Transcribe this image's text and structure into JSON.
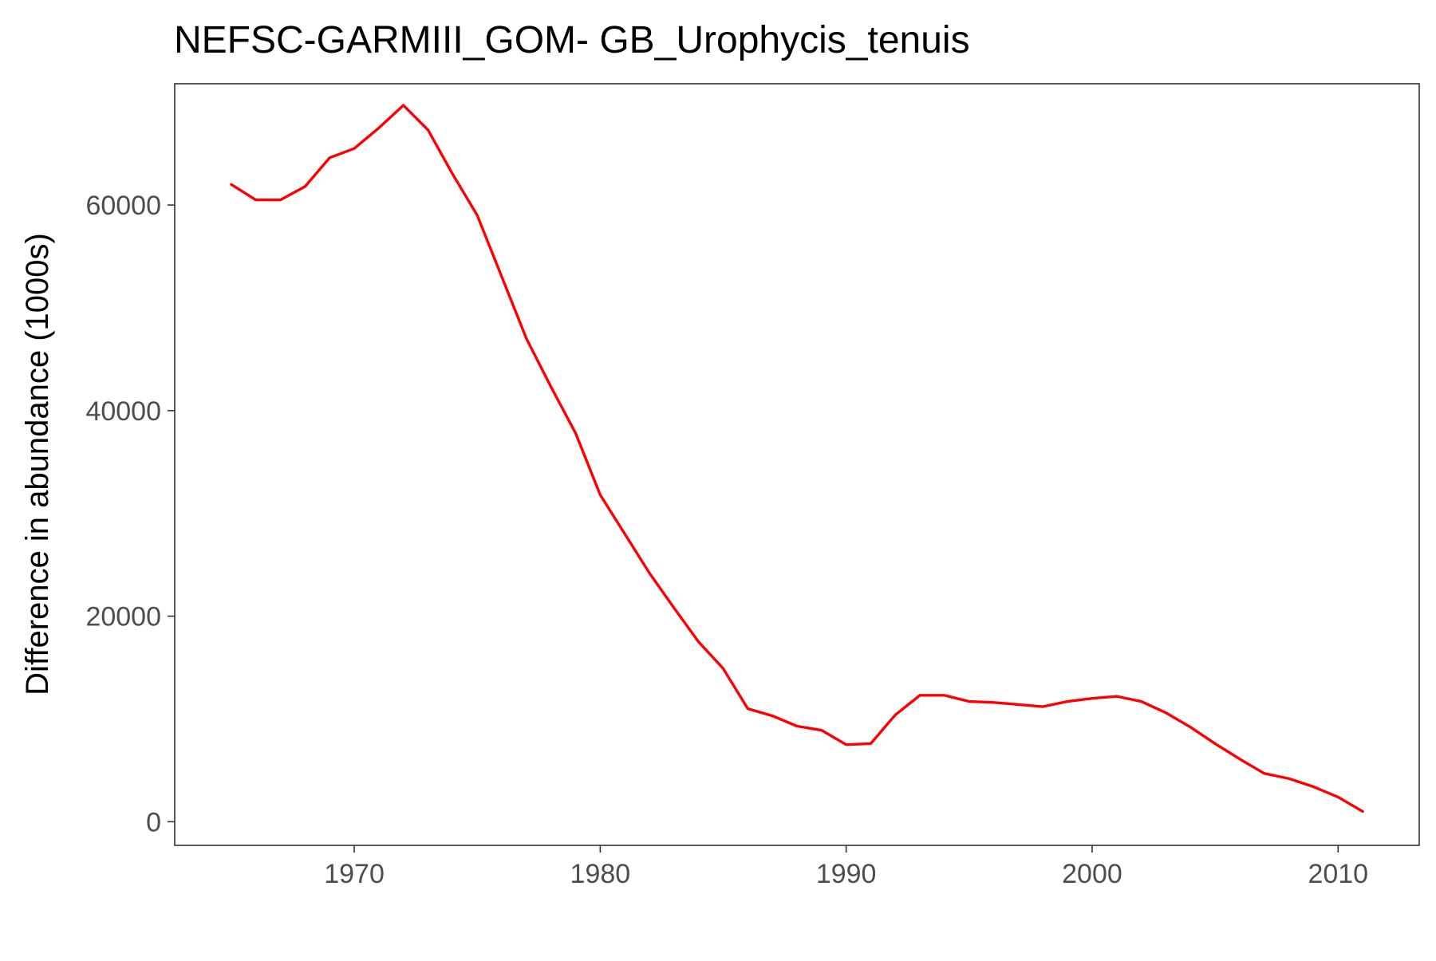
{
  "chart_data": {
    "type": "line",
    "title": "NEFSC-GARMIII_GOM- GB_Urophycis_tenuis",
    "xlabel": "",
    "ylabel": "Difference in abundance (1000s)",
    "xlim": [
      1962.7,
      2013.3
    ],
    "ylim": [
      -2300,
      71800
    ],
    "xticks": [
      1970,
      1980,
      1990,
      2000,
      2010
    ],
    "yticks": [
      0,
      20000,
      40000,
      60000
    ],
    "grid": false,
    "legend": "none",
    "line_color": "#ff0000",
    "series": [
      {
        "x": [
          1965,
          1966,
          1967,
          1968,
          1969,
          1970,
          1971,
          1972,
          1973,
          1974,
          1975,
          1976,
          1977,
          1978,
          1979,
          1980,
          1981,
          1982,
          1983,
          1984,
          1985,
          1986,
          1987,
          1988,
          1989,
          1990,
          1991,
          1992,
          1993,
          1994,
          1995,
          1996,
          1997,
          1998,
          1999,
          2000,
          2001,
          2002,
          2003,
          2004,
          2005,
          2006,
          2007,
          2008,
          2009,
          2010,
          2011
        ],
        "values": [
          62000,
          60500,
          60500,
          61800,
          64600,
          65500,
          67500,
          69700,
          67300,
          63000,
          59000,
          53000,
          47000,
          42300,
          37800,
          31800,
          28000,
          24200,
          20800,
          17500,
          14900,
          11000,
          10300,
          9300,
          8900,
          7500,
          7600,
          10400,
          12300,
          12300,
          11700,
          11600,
          11400,
          11200,
          11700,
          12000,
          12200,
          11700,
          10600,
          9200,
          7600,
          6100,
          4700,
          4200,
          3400,
          2400,
          1000
        ]
      }
    ]
  }
}
